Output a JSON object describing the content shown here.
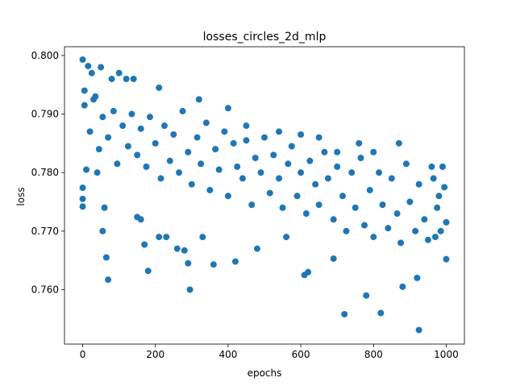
{
  "chart_data": {
    "type": "scatter",
    "title": "losses_circles_2d_mlp",
    "x_label": "epochs",
    "y_label": "loss",
    "color": "#1f77b4",
    "x": [
      0,
      0,
      0,
      0,
      5,
      10,
      15,
      25,
      35,
      40,
      50,
      55,
      60,
      65,
      70,
      80,
      100,
      120,
      140,
      150,
      160,
      170,
      180,
      210,
      210,
      230,
      260,
      280,
      290,
      295,
      320,
      330,
      360,
      400,
      420,
      450,
      480,
      540,
      560,
      600,
      610,
      620,
      650,
      690,
      700,
      720,
      760,
      780,
      800,
      820,
      870,
      880,
      920,
      925,
      960,
      1000,
      5,
      20,
      30,
      45,
      55,
      70,
      85,
      95,
      110,
      125,
      135,
      150,
      160,
      175,
      185,
      200,
      215,
      225,
      240,
      250,
      265,
      275,
      290,
      300,
      315,
      325,
      340,
      350,
      365,
      375,
      390,
      400,
      415,
      425,
      440,
      450,
      465,
      475,
      490,
      500,
      515,
      525,
      540,
      550,
      565,
      575,
      590,
      600,
      615,
      625,
      640,
      650,
      665,
      675,
      690,
      700,
      715,
      725,
      740,
      750,
      765,
      775,
      790,
      800,
      815,
      825,
      840,
      850,
      865,
      875,
      890,
      900,
      915,
      925,
      940,
      950,
      965,
      975,
      985,
      995,
      1000,
      990,
      980,
      970
    ],
    "values": [
      0.7993,
      0.7774,
      0.7742,
      0.7755,
      0.794,
      0.7805,
      0.7982,
      0.797,
      0.793,
      0.78,
      0.798,
      0.77,
      0.774,
      0.7655,
      0.7617,
      0.796,
      0.797,
      0.796,
      0.796,
      0.7724,
      0.772,
      0.7677,
      0.7632,
      0.7945,
      0.769,
      0.769,
      0.767,
      0.7667,
      0.7645,
      0.76,
      0.7925,
      0.769,
      0.7643,
      0.791,
      0.7648,
      0.788,
      0.767,
      0.787,
      0.769,
      0.7865,
      0.7625,
      0.763,
      0.786,
      0.7653,
      0.7835,
      0.7558,
      0.785,
      0.759,
      0.7835,
      0.756,
      0.785,
      0.7605,
      0.762,
      0.7531,
      0.781,
      0.7652,
      0.7915,
      0.787,
      0.7925,
      0.784,
      0.7895,
      0.786,
      0.7905,
      0.7815,
      0.788,
      0.7845,
      0.79,
      0.783,
      0.7875,
      0.781,
      0.7895,
      0.785,
      0.779,
      0.788,
      0.782,
      0.7865,
      0.78,
      0.7905,
      0.7835,
      0.778,
      0.786,
      0.7815,
      0.7885,
      0.777,
      0.784,
      0.7805,
      0.787,
      0.776,
      0.785,
      0.781,
      0.779,
      0.7855,
      0.7745,
      0.7825,
      0.78,
      0.786,
      0.7765,
      0.783,
      0.779,
      0.774,
      0.7815,
      0.7845,
      0.776,
      0.78,
      0.773,
      0.782,
      0.778,
      0.7745,
      0.7835,
      0.779,
      0.772,
      0.781,
      0.776,
      0.77,
      0.78,
      0.774,
      0.7825,
      0.771,
      0.777,
      0.769,
      0.78,
      0.7745,
      0.7705,
      0.779,
      0.773,
      0.768,
      0.7815,
      0.775,
      0.77,
      0.778,
      0.772,
      0.7685,
      0.779,
      0.774,
      0.77,
      0.7775,
      0.7715,
      0.781,
      0.776,
      0.769
    ],
    "xlim": [
      -50,
      1050
    ],
    "ylim": [
      0.7507,
      0.8015
    ],
    "xticks": [
      0,
      200,
      400,
      600,
      800,
      1000
    ],
    "yticks": [
      {
        "value": 0.76,
        "label": "0.760"
      },
      {
        "value": 0.77,
        "label": "0.770"
      },
      {
        "value": 0.78,
        "label": "0.780"
      },
      {
        "value": 0.79,
        "label": "0.790"
      },
      {
        "value": 0.8,
        "label": "0.800"
      }
    ]
  }
}
